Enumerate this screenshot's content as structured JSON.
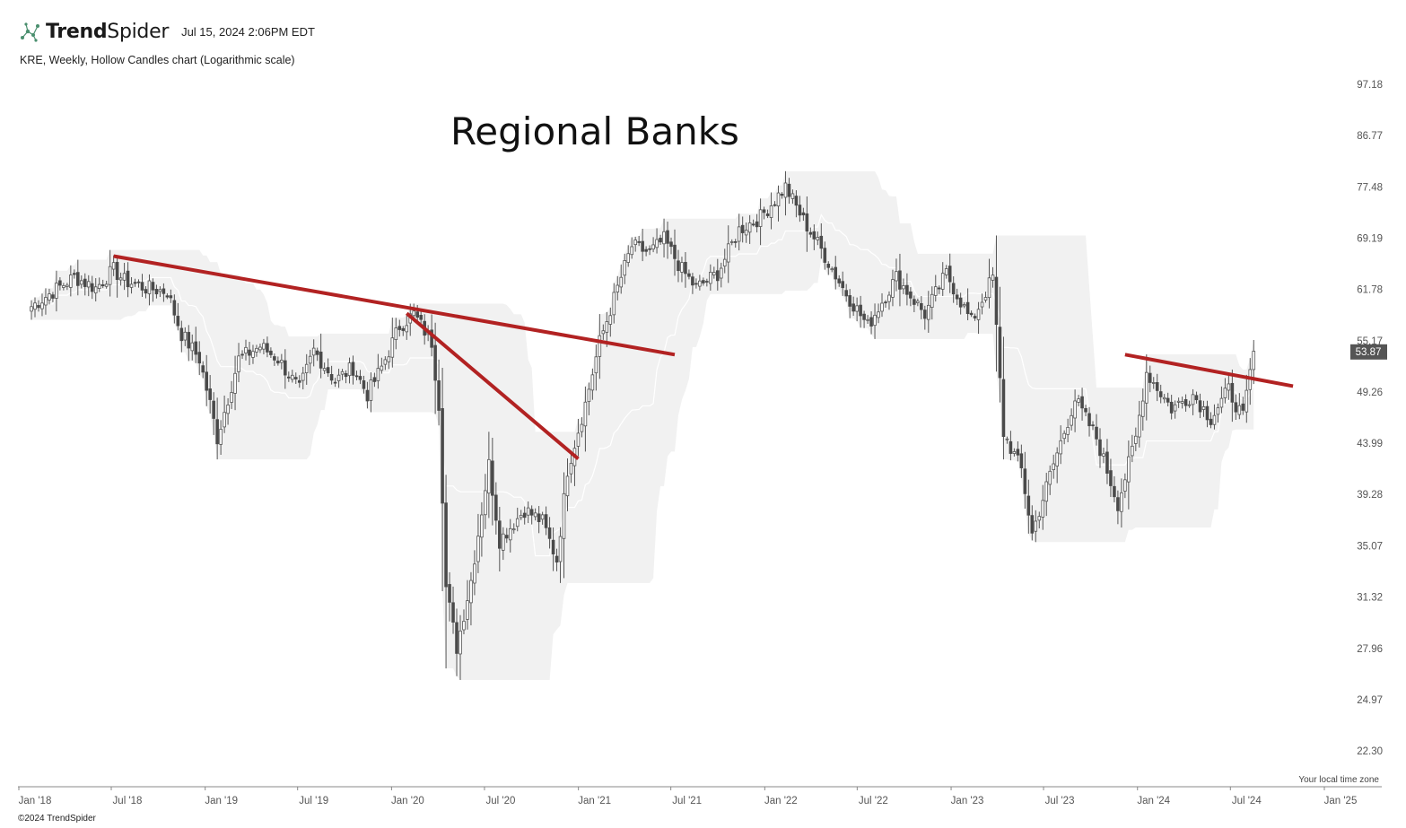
{
  "header": {
    "brand_bold": "Trend",
    "brand_light": "Spider",
    "timestamp": "Jul 15, 2024 2:06PM EDT"
  },
  "subtitle": "KRE, Weekly, Hollow Candles chart (Logarithmic scale)",
  "annotation": "Regional Banks",
  "timezone_label": "Your local time zone",
  "copyright": "©2024 TrendSpider",
  "chart_data": {
    "type": "candlestick",
    "symbol": "KRE",
    "interval": "Weekly",
    "scale": "log",
    "y_ticks": [
      "97.18",
      "86.77",
      "77.48",
      "69.19",
      "61.78",
      "55.17",
      "49.26",
      "43.99",
      "39.28",
      "35.07",
      "31.32",
      "27.96",
      "24.97",
      "22.30"
    ],
    "y_range": [
      20.5,
      100
    ],
    "x_ticks": [
      {
        "label": "Jan '18",
        "date": "2018-01-01"
      },
      {
        "label": "Jul '18",
        "date": "2018-07-01"
      },
      {
        "label": "Jan '19",
        "date": "2019-01-01"
      },
      {
        "label": "Jul '19",
        "date": "2019-07-01"
      },
      {
        "label": "Jan '20",
        "date": "2020-01-01"
      },
      {
        "label": "Jul '20",
        "date": "2020-07-01"
      },
      {
        "label": "Jan '21",
        "date": "2021-01-01"
      },
      {
        "label": "Jul '21",
        "date": "2021-07-01"
      },
      {
        "label": "Jan '22",
        "date": "2022-01-01"
      },
      {
        "label": "Jul '22",
        "date": "2022-07-01"
      },
      {
        "label": "Jan '23",
        "date": "2023-01-01"
      },
      {
        "label": "Jul '23",
        "date": "2023-07-01"
      },
      {
        "label": "Jan '24",
        "date": "2024-01-01"
      },
      {
        "label": "Jul '24",
        "date": "2024-07-01"
      },
      {
        "label": "Jan '25",
        "date": "2025-01-01"
      }
    ],
    "last_price": "53.87",
    "price_path": [
      [
        "2017-12-25",
        59.5
      ],
      [
        "2018-02-05",
        61.5
      ],
      [
        "2018-03-19",
        63.5
      ],
      [
        "2018-04-30",
        62.0
      ],
      [
        "2018-06-04",
        64.5
      ],
      [
        "2018-06-25",
        63.0
      ],
      [
        "2018-08-06",
        62.0
      ],
      [
        "2018-09-17",
        61.5
      ],
      [
        "2018-10-15",
        56.0
      ],
      [
        "2018-11-19",
        53.0
      ],
      [
        "2018-12-10",
        48.0
      ],
      [
        "2018-12-24",
        44.5
      ],
      [
        "2019-02-04",
        53.0
      ],
      [
        "2019-03-18",
        54.5
      ],
      [
        "2019-04-22",
        53.0
      ],
      [
        "2019-06-03",
        49.5
      ],
      [
        "2019-07-01",
        54.0
      ],
      [
        "2019-08-12",
        50.5
      ],
      [
        "2019-09-16",
        52.0
      ],
      [
        "2019-10-14",
        49.0
      ],
      [
        "2019-11-11",
        52.0
      ],
      [
        "2019-12-16",
        57.0
      ],
      [
        "2020-01-13",
        58.5
      ],
      [
        "2020-02-17",
        55.0
      ],
      [
        "2020-03-02",
        48.0
      ],
      [
        "2020-03-16",
        32.0
      ],
      [
        "2020-04-06",
        28.0
      ],
      [
        "2020-05-04",
        32.5
      ],
      [
        "2020-06-08",
        42.0
      ],
      [
        "2020-06-29",
        35.5
      ],
      [
        "2020-08-17",
        38.0
      ],
      [
        "2020-09-21",
        37.0
      ],
      [
        "2020-10-19",
        34.0
      ],
      [
        "2020-11-09",
        41.5
      ],
      [
        "2020-12-14",
        48.0
      ],
      [
        "2021-01-11",
        55.0
      ],
      [
        "2021-02-15",
        62.0
      ],
      [
        "2021-03-15",
        68.0
      ],
      [
        "2021-04-19",
        67.0
      ],
      [
        "2021-05-17",
        69.0
      ],
      [
        "2021-06-21",
        64.5
      ],
      [
        "2021-07-19",
        62.0
      ],
      [
        "2021-08-30",
        64.0
      ],
      [
        "2021-10-11",
        70.5
      ],
      [
        "2021-11-22",
        72.5
      ],
      [
        "2022-01-10",
        77.5
      ],
      [
        "2022-02-14",
        72.0
      ],
      [
        "2022-03-21",
        67.5
      ],
      [
        "2022-05-02",
        62.0
      ],
      [
        "2022-06-20",
        57.0
      ],
      [
        "2022-08-15",
        63.5
      ],
      [
        "2022-10-10",
        58.5
      ],
      [
        "2022-11-21",
        64.0
      ],
      [
        "2023-01-09",
        57.5
      ],
      [
        "2023-02-20",
        63.5
      ],
      [
        "2023-03-13",
        45.0
      ],
      [
        "2023-04-17",
        41.5
      ],
      [
        "2023-05-08",
        36.0
      ],
      [
        "2023-06-12",
        41.0
      ],
      [
        "2023-07-31",
        48.5
      ],
      [
        "2023-09-11",
        44.5
      ],
      [
        "2023-10-23",
        38.5
      ],
      [
        "2023-11-27",
        44.5
      ],
      [
        "2023-12-18",
        51.5
      ],
      [
        "2024-02-05",
        47.5
      ],
      [
        "2024-03-18",
        49.0
      ],
      [
        "2024-04-22",
        46.5
      ],
      [
        "2024-05-27",
        49.5
      ],
      [
        "2024-06-24",
        46.5
      ],
      [
        "2024-07-15",
        53.9
      ]
    ],
    "trendlines": [
      {
        "color": "#b22222",
        "from": [
          "2018-06-04",
          66.5
        ],
        "to": [
          "2021-06-07",
          53.5
        ]
      },
      {
        "color": "#b22222",
        "from": [
          "2019-12-30",
          58.6
        ],
        "to": [
          "2020-11-30",
          42.5
        ]
      },
      {
        "color": "#b22222",
        "from": [
          "2023-11-06",
          53.5
        ],
        "to": [
          "2024-09-30",
          49.9
        ]
      }
    ]
  }
}
